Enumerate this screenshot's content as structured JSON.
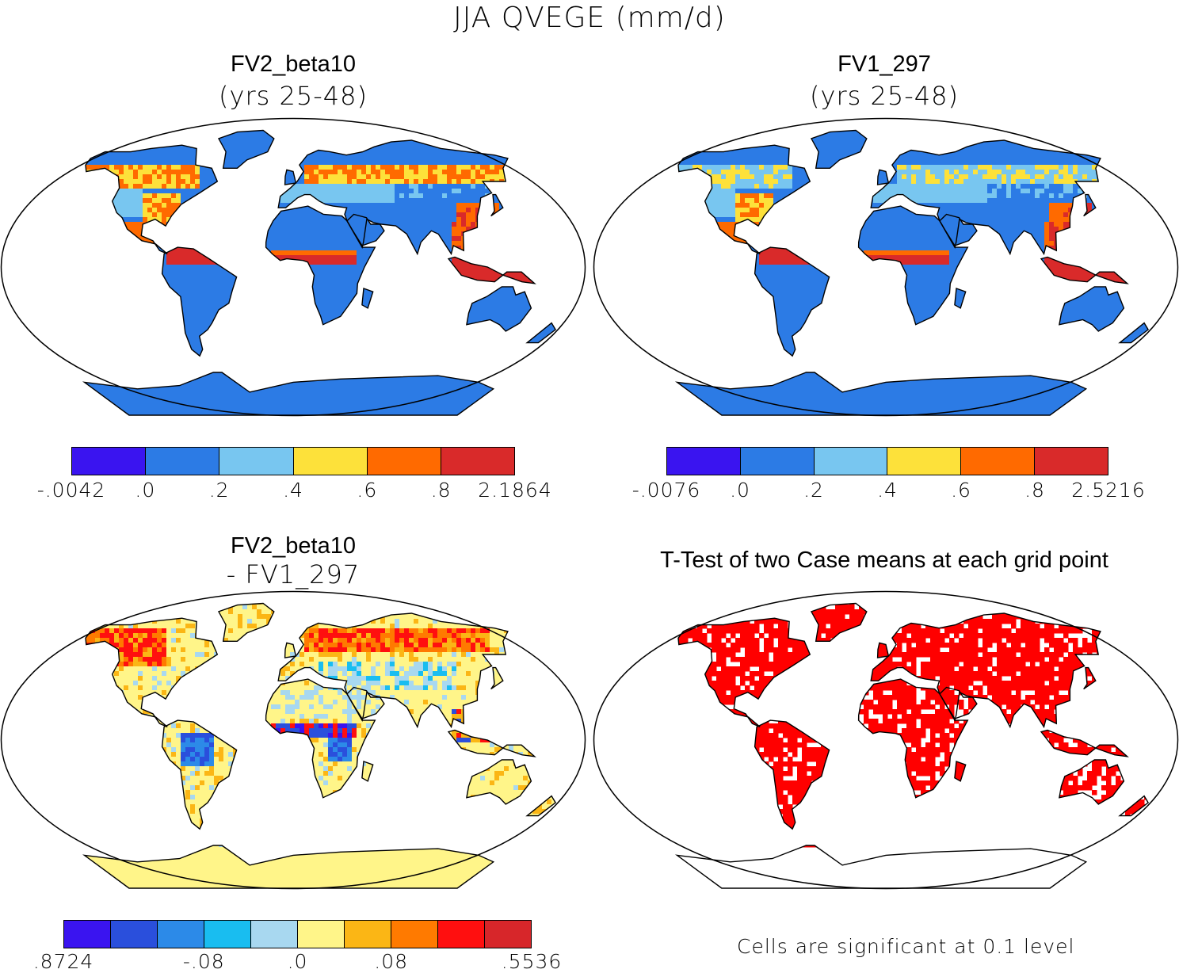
{
  "figure": {
    "title": "JJA QVEGE (mm/d)",
    "note": "Cells are significant at 0.1 level"
  },
  "panels": [
    {
      "id": "fv2",
      "title": "FV2_beta10",
      "subtitle": "(yrs 25-48)",
      "colorbar": {
        "colors": [
          "#3a14f0",
          "#2c7be5",
          "#78c6f0",
          "#fde13a",
          "#ff6a00",
          "#d92a2a"
        ],
        "ticks": [
          "-.0042",
          ".0",
          ".2",
          ".4",
          ".6",
          ".8",
          "2.1864"
        ]
      }
    },
    {
      "id": "fv1",
      "title": "FV1_297",
      "subtitle": "(yrs 25-48)",
      "colorbar": {
        "colors": [
          "#3a14f0",
          "#2c7be5",
          "#78c6f0",
          "#fde13a",
          "#ff6a00",
          "#d92a2a"
        ],
        "ticks": [
          "-.0076",
          ".0",
          ".2",
          ".4",
          ".6",
          ".8",
          "2.5216"
        ]
      }
    },
    {
      "id": "diff",
      "title": "FV2_beta10",
      "subtitle": "- FV1_297",
      "colorbar": {
        "colors": [
          "#3a14f0",
          "#2a4fdc",
          "#2c8ae8",
          "#19bdf0",
          "#a8d8f0",
          "#fff589",
          "#fbb615",
          "#ff7a00",
          "#ff0f0f",
          "#d7262a"
        ],
        "ticks": [
          ".8724",
          "-.08",
          ".0",
          ".08",
          ".5536"
        ]
      }
    },
    {
      "id": "ttest",
      "title": "T-Test of two Case means at each grid point",
      "colors": {
        "significant": "#ff0000"
      }
    }
  ]
}
